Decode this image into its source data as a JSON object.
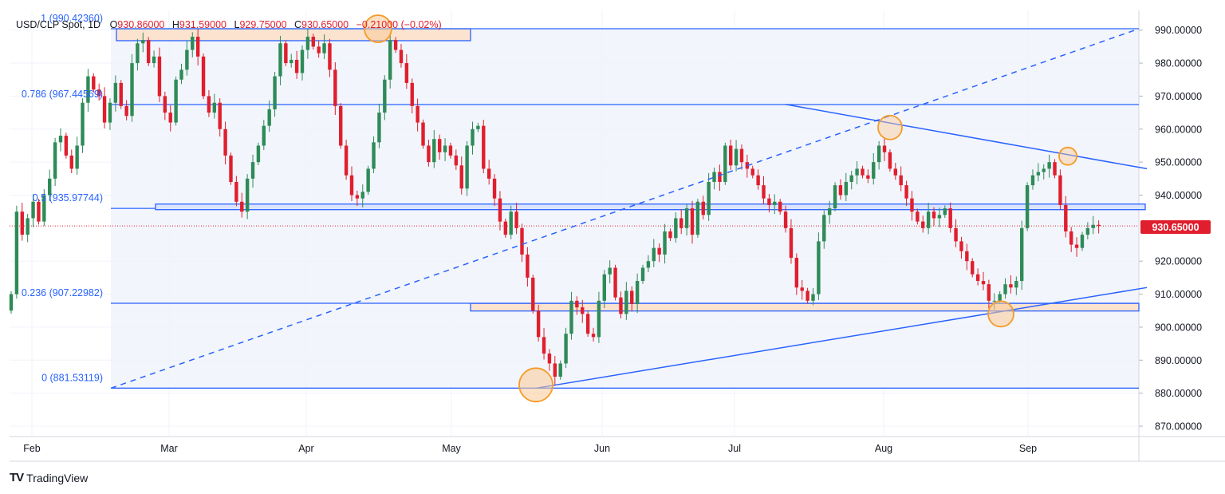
{
  "header": {
    "symbol": "USD/CLP Spot, 1D",
    "open_label": "O",
    "open": "930.86000",
    "high_label": "H",
    "high": "931.59000",
    "low_label": "L",
    "low": "929.75000",
    "close_label": "C",
    "close": "930.65000",
    "change": "−0.21000 (−0.02%)"
  },
  "price_tag": "930.65000",
  "brand": "TradingView",
  "colors": {
    "up": "#2e8b57",
    "down": "#e01e2d",
    "line": "#2962ff",
    "zone_fill": "#fbe3d0",
    "circle": "#f59b27",
    "fib_band": "#eef1fb"
  },
  "chart_data": {
    "type": "candlestick",
    "y_axis": {
      "ticks": [
        "990.00000",
        "980.00000",
        "970.00000",
        "960.00000",
        "950.00000",
        "940.00000",
        "920.00000",
        "910.00000",
        "900.00000",
        "890.00000",
        "880.00000",
        "870.00000"
      ],
      "range": [
        865,
        995
      ]
    },
    "x_axis": {
      "months": [
        "Feb",
        "Mar",
        "Apr",
        "May",
        "Jun",
        "Jul",
        "Aug",
        "Sep"
      ]
    },
    "fib_levels": [
      {
        "label": "1 (990.42360)",
        "value": 990.4236
      },
      {
        "label": "0.786 (967.44569)",
        "value": 967.44569
      },
      {
        "label": "0.5 (935.97744)",
        "value": 935.97744
      },
      {
        "label": "0.236 (907.22982)",
        "value": 907.22982
      },
      {
        "label": "0 (881.53119)",
        "value": 881.53119
      }
    ],
    "last_close": 930.65,
    "closes": [
      910,
      935,
      928,
      933,
      938,
      932,
      940,
      945,
      956,
      958,
      952,
      948,
      955,
      968,
      976,
      972,
      970,
      962,
      968,
      974,
      967,
      964,
      980,
      986,
      987,
      980,
      982,
      970,
      965,
      962,
      975,
      978,
      984,
      988,
      982,
      970,
      965,
      968,
      960,
      952,
      944,
      938,
      935,
      945,
      950,
      955,
      961,
      966,
      976,
      986,
      980,
      981,
      977,
      984,
      988,
      985,
      983,
      986,
      978,
      967,
      955,
      946,
      940,
      939,
      941,
      948,
      956,
      965,
      975,
      987,
      984,
      980,
      974,
      967,
      962,
      955,
      950,
      957,
      953,
      955,
      952,
      949,
      942,
      955,
      960,
      961,
      948,
      945,
      939,
      932,
      928,
      935,
      930,
      922,
      915,
      905,
      897,
      892,
      889,
      885,
      889,
      898,
      908,
      906,
      904,
      898,
      897,
      908,
      916,
      918,
      909,
      904,
      911,
      907,
      914,
      918,
      920,
      924,
      922,
      929,
      927,
      933,
      930,
      936,
      928,
      938,
      934,
      944,
      947,
      944,
      955,
      949,
      954,
      950,
      948,
      946,
      943,
      939,
      937,
      938,
      935,
      930,
      921,
      912,
      911,
      908,
      910,
      926,
      934,
      936,
      943,
      940,
      944,
      946,
      948,
      946,
      945,
      950,
      955,
      953,
      948,
      946,
      943,
      939,
      935,
      932,
      930,
      935,
      933,
      934,
      936,
      930,
      926,
      923,
      920,
      916,
      914,
      913,
      908,
      908,
      910,
      913,
      912,
      914,
      930,
      943,
      946,
      947,
      948,
      950,
      946,
      937,
      929,
      925,
      924,
      928,
      930,
      931,
      930.65
    ]
  }
}
